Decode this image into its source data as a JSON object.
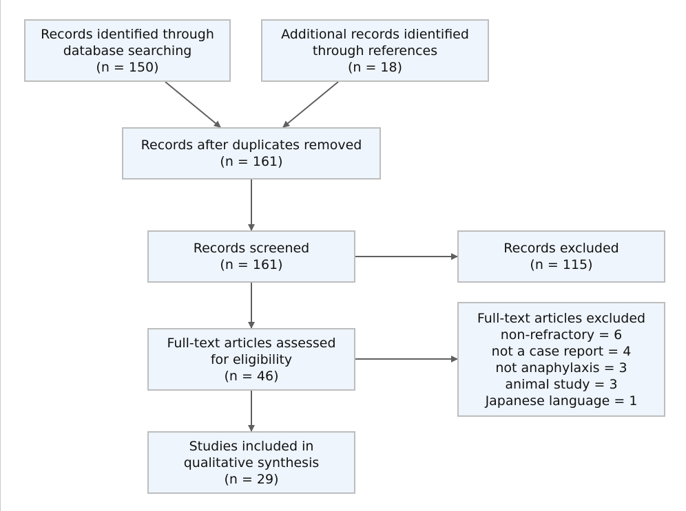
{
  "identification": {
    "database": {
      "line1": "Records identified through",
      "line2": "database searching",
      "count": "(n = 150)"
    },
    "references": {
      "line1": "Additional records idientified",
      "line2": "through references",
      "count": "(n = 18)"
    }
  },
  "duplicates": {
    "line1": "Records after duplicates removed",
    "count": "(n = 161)"
  },
  "screened": {
    "line1": "Records screened",
    "count": "(n = 161)"
  },
  "excluded": {
    "line1": "Records excluded",
    "count": "(n = 115)"
  },
  "fulltext": {
    "line1": "Full-text articles assessed",
    "line2": "for eligibility",
    "count": "(n = 46)"
  },
  "fulltext_excluded": {
    "title": "Full-text articles excluded",
    "reasons": [
      "non-refractory = 6",
      "not a case report = 4",
      "not anaphylaxis = 3",
      "animal study = 3",
      "Japanese language = 1"
    ]
  },
  "included": {
    "line1": "Studies included in",
    "line2": "qualitative synthesis",
    "count": "(n = 29)"
  },
  "colors": {
    "box_fill": "#eef5fd",
    "box_border": "#bdbdbd",
    "arrow": "#5f5f5f"
  }
}
